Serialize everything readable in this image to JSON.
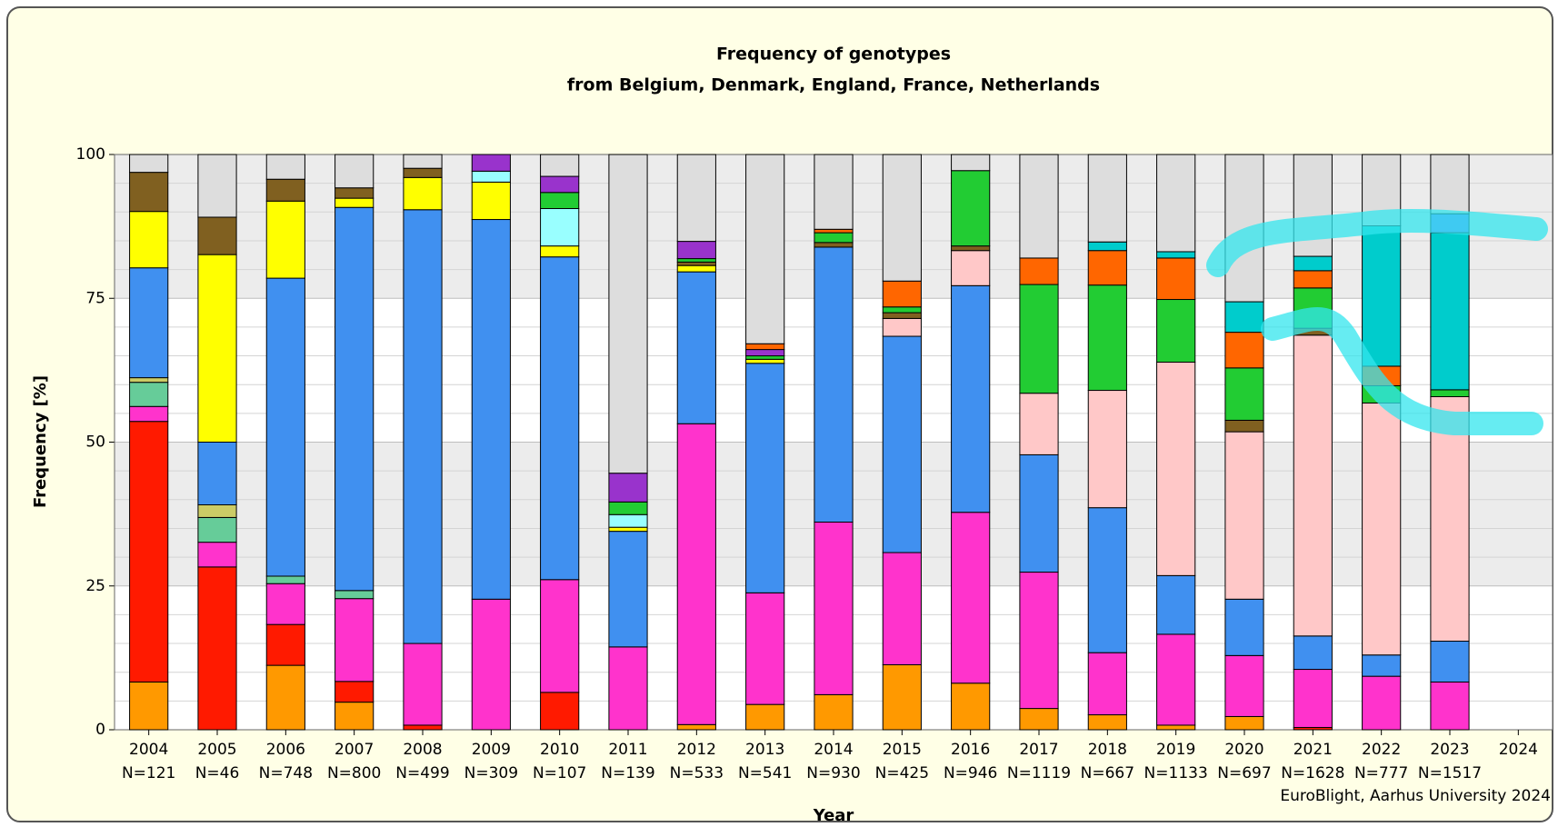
{
  "chart_data": {
    "type": "stacked_bar",
    "title": "Frequency of genotypes",
    "subtitle": "from Belgium, Denmark, England, France, Netherlands",
    "x_label": "Year",
    "y_label": "Frequency [%]",
    "credit": "EuroBlight, Aarhus University 2024",
    "categories": [
      "2004",
      "2005",
      "2006",
      "2007",
      "2008",
      "2009",
      "2010",
      "2011",
      "2012",
      "2013",
      "2014",
      "2015",
      "2016",
      "2017",
      "2018",
      "2019",
      "2020",
      "2021",
      "2022",
      "2023",
      "2024"
    ],
    "sample_sizes": [
      "N=121",
      "N=46",
      "N=748",
      "N=800",
      "N=499",
      "N=309",
      "N=107",
      "N=139",
      "N=533",
      "N=541",
      "N=930",
      "N=425",
      "N=946",
      "N=1119",
      "N=667",
      "N=1133",
      "N=697",
      "N=1628",
      "N=777",
      "N=1517"
    ],
    "ylim": [
      0,
      100
    ],
    "yticks": [
      0,
      25,
      50,
      75,
      100
    ],
    "grid": true,
    "series": [
      {
        "color": "#ff9900",
        "values": [
          8.3,
          0,
          11.2,
          4.8,
          0,
          0,
          0,
          0,
          0.9,
          4.4,
          6.1,
          11.3,
          8.1,
          3.7,
          2.6,
          0.8,
          2.3,
          0,
          0,
          0,
          0
        ]
      },
      {
        "color": "#ff1a00",
        "values": [
          45.3,
          28.3,
          7.1,
          3.6,
          0.8,
          0,
          6.5,
          0,
          0,
          0,
          0,
          0,
          0,
          0,
          0,
          0,
          0,
          0.4,
          0,
          0,
          0
        ]
      },
      {
        "color": "#ff33cc",
        "values": [
          2.6,
          4.3,
          7.1,
          14.4,
          14.2,
          22.7,
          19.6,
          14.4,
          52.3,
          19.4,
          30.0,
          19.5,
          29.7,
          23.7,
          10.8,
          15.8,
          10.6,
          10.1,
          9.3,
          8.3,
          0
        ]
      },
      {
        "color": "#66cc99",
        "values": [
          4.2,
          4.3,
          1.3,
          1.4,
          0,
          0,
          0,
          0,
          0,
          0,
          0,
          0,
          0,
          0,
          0,
          0,
          0,
          0,
          0,
          0,
          0
        ]
      },
      {
        "color": "#cccc66",
        "values": [
          0.8,
          2.2,
          0,
          0,
          0,
          0,
          0,
          0,
          0,
          0,
          0,
          0,
          0,
          0,
          0,
          0,
          0,
          0,
          0,
          0,
          0
        ]
      },
      {
        "color": "#4090f0",
        "values": [
          19.1,
          10.9,
          51.8,
          66.6,
          75.4,
          66.0,
          56.1,
          20.1,
          26.4,
          39.9,
          47.8,
          37.6,
          39.4,
          20.4,
          25.2,
          10.2,
          9.8,
          5.8,
          3.7,
          7.1,
          0
        ]
      },
      {
        "color": "#ffc8c8",
        "values": [
          0,
          0,
          0,
          0,
          0,
          0,
          0,
          0,
          0,
          0,
          0,
          3.1,
          6.1,
          10.7,
          20.4,
          37.1,
          29.1,
          52.3,
          43.8,
          42.5,
          0
        ]
      },
      {
        "color": "#ffff00",
        "values": [
          9.8,
          32.6,
          13.4,
          1.6,
          5.6,
          6.5,
          1.9,
          0.7,
          1.1,
          0.7,
          0,
          0,
          0,
          0,
          0,
          0,
          0,
          0,
          0,
          0,
          0
        ]
      },
      {
        "color": "#806020",
        "values": [
          6.8,
          6.5,
          3.8,
          1.8,
          1.6,
          0,
          0,
          0,
          0.6,
          0,
          0.8,
          1.0,
          0.8,
          0,
          0,
          0,
          2.0,
          1.2,
          0,
          0,
          0
        ]
      },
      {
        "color": "#99ffff",
        "values": [
          0,
          0,
          0,
          0,
          0,
          1.9,
          6.5,
          2.2,
          0,
          0,
          0,
          0,
          0,
          0,
          0,
          0,
          0,
          0,
          0,
          0,
          0
        ]
      },
      {
        "color": "#22cc33",
        "values": [
          0,
          0,
          0,
          0,
          0,
          0,
          2.8,
          2.2,
          0.6,
          0.6,
          1.7,
          1.0,
          13.1,
          18.9,
          18.3,
          10.9,
          9.1,
          7.0,
          3.0,
          1.2,
          0
        ]
      },
      {
        "color": "#9933cc",
        "values": [
          0,
          0,
          0,
          0,
          0,
          2.9,
          2.8,
          5.0,
          3.0,
          1.1,
          0,
          0,
          0,
          0,
          0,
          0,
          0,
          0,
          0,
          0,
          0
        ]
      },
      {
        "color": "#ff6600",
        "values": [
          0,
          0,
          0,
          0,
          0,
          0,
          0,
          0,
          0,
          1.0,
          0.6,
          4.5,
          0,
          4.6,
          6.0,
          7.2,
          6.2,
          3.0,
          3.4,
          0,
          0
        ]
      },
      {
        "color": "#00cccc",
        "values": [
          0,
          0,
          0,
          0,
          0,
          0,
          0,
          0,
          0,
          0,
          0,
          0,
          0,
          0,
          1.5,
          1.1,
          5.3,
          2.5,
          24.4,
          27.3,
          0
        ]
      },
      {
        "color": "#6677ff",
        "values": [
          0,
          0,
          0,
          0,
          0,
          0,
          0,
          0,
          0,
          0,
          0,
          0,
          0,
          0,
          0,
          0,
          0,
          0,
          0,
          3.3,
          0
        ]
      },
      {
        "color": "#dddddd",
        "values": [
          3.1,
          10.9,
          4.3,
          5.8,
          2.4,
          0,
          3.8,
          55.4,
          15.1,
          32.9,
          13.0,
          22.0,
          2.8,
          18.0,
          15.2,
          16.9,
          25.6,
          17.7,
          12.4,
          10.3,
          0
        ]
      }
    ]
  }
}
